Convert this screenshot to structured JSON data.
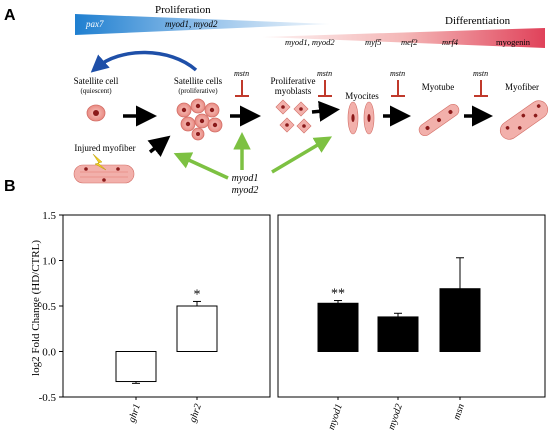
{
  "panel_a": {
    "label": "A",
    "proliferation": "Proliferation",
    "differentiation": "Differentiation",
    "bar_blue_genes": [
      "pax7",
      "myod1, myod2"
    ],
    "bar_red_genes": [
      "myod1, myod2",
      "myf5",
      "mef2",
      "mrf4",
      "myogenin"
    ],
    "stages": {
      "satellite_quiescent": [
        "Satellite cell",
        "(quiescent)"
      ],
      "satellite_proliferative": [
        "Satellite cells",
        "(proliferative)"
      ],
      "proliferative_myoblasts": [
        "Proliferative",
        "myoblasts"
      ],
      "myocites": "Myocites",
      "myotube": "Myotube",
      "myofiber": "Myofiber",
      "injured": "Injured myofiber"
    },
    "inhibitor": "mstn",
    "regulators": [
      "myod1",
      "myod2"
    ],
    "colors": {
      "blue": "#1f7fd0",
      "red": "#e0425a",
      "green": "#7dc142",
      "arrow": "#1e4fa8",
      "inhib": "#c0392b"
    }
  },
  "panel_b": {
    "label": "B",
    "ylabel": "log2 Fold Change (HD/CTRL)",
    "yticks": [
      "1.5",
      "1.0",
      "0.5",
      "0.0",
      "-0.5"
    ],
    "significance": {
      "ghr2": "*",
      "myod1": "**"
    }
  },
  "chart_data": {
    "type": "bar",
    "ylabel": "log2 Fold Change (HD/CTRL)",
    "ylim": [
      -0.5,
      1.5
    ],
    "panels": [
      {
        "categories": [
          "ghr1",
          "ghr2"
        ],
        "values": [
          -0.33,
          0.5
        ],
        "errors": [
          0.02,
          0.05
        ],
        "fill": "#ffffff"
      },
      {
        "categories": [
          "myod1",
          "myod2",
          "msn"
        ],
        "values": [
          0.53,
          0.38,
          0.69
        ],
        "errors": [
          0.03,
          0.04,
          0.34
        ],
        "fill": "#000000"
      }
    ]
  }
}
